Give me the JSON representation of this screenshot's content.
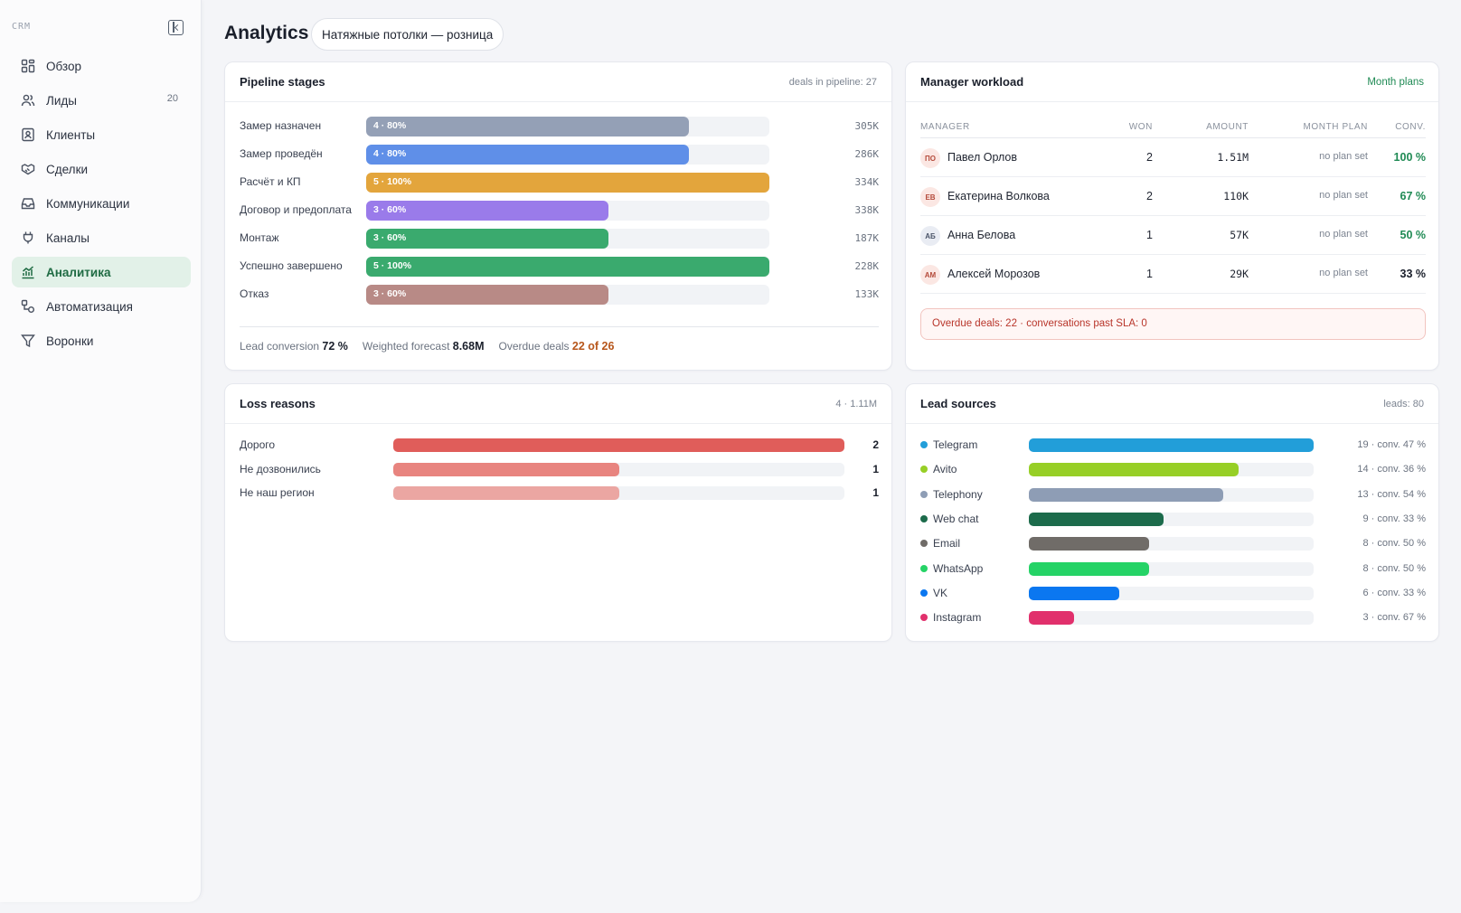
{
  "sidebar": {
    "brand": "CRM",
    "items": [
      {
        "label": "Обзор",
        "icon": "grid-icon",
        "badge": ""
      },
      {
        "label": "Лиды",
        "icon": "users-icon",
        "badge": "20"
      },
      {
        "label": "Клиенты",
        "icon": "contact-card-icon",
        "badge": ""
      },
      {
        "label": "Сделки",
        "icon": "handshake-icon",
        "badge": ""
      },
      {
        "label": "Коммуникации",
        "icon": "inbox-icon",
        "badge": ""
      },
      {
        "label": "Каналы",
        "icon": "plug-icon",
        "badge": ""
      },
      {
        "label": "Аналитика",
        "icon": "chart-icon",
        "badge": "",
        "active": true
      },
      {
        "label": "Автоматизация",
        "icon": "workflow-icon",
        "badge": ""
      },
      {
        "label": "Воронки",
        "icon": "funnel-icon",
        "badge": ""
      }
    ]
  },
  "header": {
    "title": "Analytics",
    "org": "Натяжные потолки — розница"
  },
  "pipeline": {
    "title": "Pipeline stages",
    "meta": "deals in pipeline: 27",
    "stages": [
      {
        "label": "Замер назначен",
        "tag": "4 · 80%",
        "fraction": 0.8,
        "amount": "305K",
        "color": "#94a0b6"
      },
      {
        "label": "Замер проведён",
        "tag": "4 · 80%",
        "fraction": 0.8,
        "amount": "286K",
        "color": "#5f8fe8"
      },
      {
        "label": "Расчёт и КП",
        "tag": "5 · 100%",
        "fraction": 1.0,
        "amount": "334K",
        "color": "#e3a53c"
      },
      {
        "label": "Договор и предоплата",
        "tag": "3 · 60%",
        "fraction": 0.6,
        "amount": "338K",
        "color": "#9a7bea"
      },
      {
        "label": "Монтаж",
        "tag": "3 · 60%",
        "fraction": 0.6,
        "amount": "187K",
        "color": "#3aaa6e"
      },
      {
        "label": "Успешно завершено",
        "tag": "5 · 100%",
        "fraction": 1.0,
        "amount": "228K",
        "color": "#3aaa6e"
      },
      {
        "label": "Отказ",
        "tag": "3 · 60%",
        "fraction": 0.6,
        "amount": "133K",
        "color": "#b88a86"
      }
    ],
    "stats": {
      "conversion_label": "Lead conversion",
      "conversion_value": "72 %",
      "forecast_label": "Weighted forecast",
      "forecast_value": "8.68M",
      "overdue_label": "Overdue deals",
      "overdue_value": "22 of 26"
    }
  },
  "workload": {
    "title": "Manager workload",
    "link": "Month plans",
    "columns": {
      "manager": "Manager",
      "won": "Won",
      "amount": "Amount",
      "plan": "Month plan",
      "conv": "Conv."
    },
    "rows": [
      {
        "initials": "ПО",
        "name": "Павел Орлов",
        "won": "2",
        "amount": "1.51M",
        "plan": "no plan set",
        "conv": "100 %",
        "conv_color": "#1f8a54",
        "avatar_bg": "#fbe7e3",
        "avatar_fg": "#b44a3a"
      },
      {
        "initials": "ЕВ",
        "name": "Екатерина Волкова",
        "won": "2",
        "amount": "110K",
        "plan": "no plan set",
        "conv": "67 %",
        "conv_color": "#1f8a54",
        "avatar_bg": "#fbe7e3",
        "avatar_fg": "#b44a3a"
      },
      {
        "initials": "АБ",
        "name": "Анна Белова",
        "won": "1",
        "amount": "57K",
        "plan": "no plan set",
        "conv": "50 %",
        "conv_color": "#1f8a54",
        "avatar_bg": "#e9ecf3",
        "avatar_fg": "#4a5468"
      },
      {
        "initials": "АМ",
        "name": "Алексей Морозов",
        "won": "1",
        "amount": "29K",
        "plan": "no plan set",
        "conv": "33 %",
        "conv_color": "#1a1f2b",
        "avatar_bg": "#fbe7e3",
        "avatar_fg": "#b44a3a"
      }
    ],
    "alert": "Overdue deals: 22 · conversations past SLA: 0"
  },
  "loss": {
    "title": "Loss reasons",
    "meta": "4 · 1.11M",
    "rows": [
      {
        "label": "Дорого",
        "count": "2",
        "fraction": 1.0,
        "color": "#e05d5a"
      },
      {
        "label": "Не дозвонились",
        "count": "1",
        "fraction": 0.5,
        "color": "#e8847f"
      },
      {
        "label": "Не наш регион",
        "count": "1",
        "fraction": 0.5,
        "color": "#eba6a2"
      }
    ]
  },
  "sources": {
    "title": "Lead sources",
    "meta": "leads: 80",
    "rows": [
      {
        "label": "Telegram",
        "stat": "19 · conv. 47 %",
        "fraction": 1.0,
        "color": "#229ed9"
      },
      {
        "label": "Avito",
        "stat": "14 · conv. 36 %",
        "fraction": 0.737,
        "color": "#97cf26"
      },
      {
        "label": "Telephony",
        "stat": "13 · conv. 54 %",
        "fraction": 0.684,
        "color": "#8e9db5"
      },
      {
        "label": "Web chat",
        "stat": "9 · conv. 33 %",
        "fraction": 0.474,
        "color": "#1c6b4b"
      },
      {
        "label": "Email",
        "stat": "8 · conv. 50 %",
        "fraction": 0.421,
        "color": "#706c68"
      },
      {
        "label": "WhatsApp",
        "stat": "8 · conv. 50 %",
        "fraction": 0.421,
        "color": "#25d366"
      },
      {
        "label": "VK",
        "stat": "6 · conv. 33 %",
        "fraction": 0.316,
        "color": "#0b77f0"
      },
      {
        "label": "Instagram",
        "stat": "3 · conv. 67 %",
        "fraction": 0.158,
        "color": "#e1306c"
      }
    ]
  }
}
